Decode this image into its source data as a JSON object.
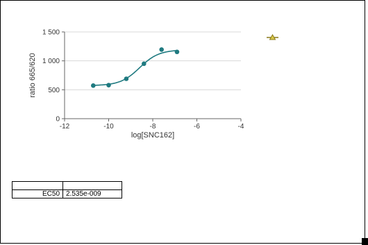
{
  "chart_data": {
    "type": "scatter",
    "title": "",
    "xlabel": "log[SNC162]",
    "ylabel": "ratio 665/620",
    "xlim": [
      -12,
      -4
    ],
    "ylim": [
      0,
      1500
    ],
    "x_ticks": [
      -12,
      -10,
      -8,
      -6,
      -4
    ],
    "x_tick_labels": [
      "-12",
      "-10",
      "-8",
      "-6",
      "-4"
    ],
    "y_ticks": [
      0,
      500,
      1000,
      1500
    ],
    "y_tick_labels": [
      "0",
      "500",
      "1 000",
      "1 500"
    ],
    "grid": "horizontal",
    "color": "#1f7a80",
    "points": [
      {
        "x": -10.7,
        "y": 572
      },
      {
        "x": -10.0,
        "y": 580
      },
      {
        "x": -9.2,
        "y": 690
      },
      {
        "x": -8.4,
        "y": 950
      },
      {
        "x": -7.6,
        "y": 1195
      },
      {
        "x": -6.9,
        "y": 1155
      }
    ],
    "fit": {
      "model": "sigmoidal dose-response",
      "bottom": 572,
      "top": 1190,
      "log_ec50": -8.596,
      "hill": 1.0,
      "x_range": [
        -10.7,
        -6.9
      ]
    },
    "legend": {
      "position": "top-right",
      "marker": "triangle-line",
      "color": "#8a7a1a",
      "label": ""
    }
  },
  "results_table": {
    "header": [
      "",
      ""
    ],
    "rows": [
      {
        "param": "EC50",
        "value": "2.535e-009"
      }
    ]
  }
}
